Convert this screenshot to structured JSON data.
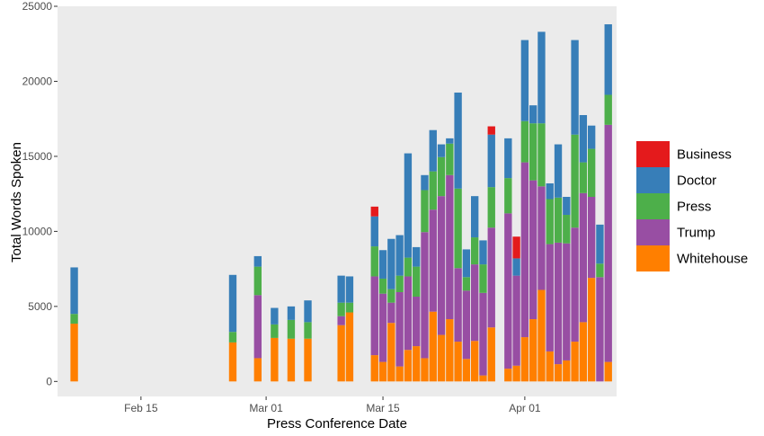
{
  "chart_data": {
    "type": "bar",
    "stacked": true,
    "xlabel": "Press Conference Date",
    "ylabel": "Total Words Spoken",
    "ylim": [
      -1000,
      25000
    ],
    "yticks": [
      0,
      5000,
      10000,
      15000,
      20000,
      25000
    ],
    "xlim": [
      "2020-02-05",
      "2020-04-12"
    ],
    "xticks": [
      {
        "date": "2020-02-15",
        "label": "Feb 15"
      },
      {
        "date": "2020-03-01",
        "label": "Mar 01"
      },
      {
        "date": "2020-03-15",
        "label": "Mar 15"
      },
      {
        "date": "2020-04-01",
        "label": "Apr 01"
      }
    ],
    "grid": false,
    "legend_position": "right",
    "stack_order": [
      "Whitehouse",
      "Trump",
      "Press",
      "Doctor",
      "Business"
    ],
    "legend": [
      "Business",
      "Doctor",
      "Press",
      "Trump",
      "Whitehouse"
    ],
    "colors": {
      "Business": "#E41A1C",
      "Doctor": "#377EB8",
      "Press": "#4DAF4A",
      "Trump": "#984EA3",
      "Whitehouse": "#FF7F00"
    },
    "bars": [
      {
        "date": "2020-02-07",
        "values": {
          "Whitehouse": 3850,
          "Trump": 0,
          "Press": 650,
          "Doctor": 3100,
          "Business": 0
        }
      },
      {
        "date": "2020-02-26",
        "values": {
          "Whitehouse": 2600,
          "Trump": 0,
          "Press": 700,
          "Doctor": 3800,
          "Business": 0
        }
      },
      {
        "date": "2020-02-29",
        "values": {
          "Whitehouse": 1550,
          "Trump": 4200,
          "Press": 1900,
          "Doctor": 700,
          "Business": 0
        }
      },
      {
        "date": "2020-03-02",
        "values": {
          "Whitehouse": 2900,
          "Trump": 0,
          "Press": 900,
          "Doctor": 1100,
          "Business": 0
        }
      },
      {
        "date": "2020-03-04",
        "values": {
          "Whitehouse": 2850,
          "Trump": 0,
          "Press": 1250,
          "Doctor": 900,
          "Business": 0
        }
      },
      {
        "date": "2020-03-06",
        "values": {
          "Whitehouse": 2850,
          "Trump": 0,
          "Press": 1100,
          "Doctor": 1450,
          "Business": 0
        }
      },
      {
        "date": "2020-03-10",
        "values": {
          "Whitehouse": 3750,
          "Trump": 600,
          "Press": 900,
          "Doctor": 1800,
          "Business": 0
        }
      },
      {
        "date": "2020-03-11",
        "values": {
          "Whitehouse": 4600,
          "Trump": 0,
          "Press": 650,
          "Doctor": 1750,
          "Business": 0
        }
      },
      {
        "date": "2020-03-14",
        "values": {
          "Whitehouse": 1750,
          "Trump": 5250,
          "Press": 2000,
          "Doctor": 2000,
          "Business": 650
        }
      },
      {
        "date": "2020-03-15",
        "values": {
          "Whitehouse": 1300,
          "Trump": 4550,
          "Press": 1000,
          "Doctor": 1900,
          "Business": 0
        }
      },
      {
        "date": "2020-03-16",
        "values": {
          "Whitehouse": 3900,
          "Trump": 1350,
          "Press": 900,
          "Doctor": 3350,
          "Business": 0
        }
      },
      {
        "date": "2020-03-17",
        "values": {
          "Whitehouse": 1000,
          "Trump": 4950,
          "Press": 1100,
          "Doctor": 2700,
          "Business": 0
        }
      },
      {
        "date": "2020-03-18",
        "values": {
          "Whitehouse": 2100,
          "Trump": 4900,
          "Press": 1250,
          "Doctor": 6950,
          "Business": 0
        }
      },
      {
        "date": "2020-03-19",
        "values": {
          "Whitehouse": 2350,
          "Trump": 3300,
          "Press": 2000,
          "Doctor": 1300,
          "Business": 0
        }
      },
      {
        "date": "2020-03-20",
        "values": {
          "Whitehouse": 1550,
          "Trump": 8400,
          "Press": 2800,
          "Doctor": 1000,
          "Business": 0
        }
      },
      {
        "date": "2020-03-21",
        "values": {
          "Whitehouse": 4650,
          "Trump": 6800,
          "Press": 2550,
          "Doctor": 2750,
          "Business": 0
        }
      },
      {
        "date": "2020-03-22",
        "values": {
          "Whitehouse": 3100,
          "Trump": 9250,
          "Press": 2600,
          "Doctor": 850,
          "Business": 0
        }
      },
      {
        "date": "2020-03-23",
        "values": {
          "Whitehouse": 4150,
          "Trump": 9600,
          "Press": 2100,
          "Doctor": 350,
          "Business": 0
        }
      },
      {
        "date": "2020-03-24",
        "values": {
          "Whitehouse": 2650,
          "Trump": 4900,
          "Press": 5300,
          "Doctor": 6400,
          "Business": 0
        }
      },
      {
        "date": "2020-03-25",
        "values": {
          "Whitehouse": 1500,
          "Trump": 4550,
          "Press": 900,
          "Doctor": 1850,
          "Business": 0
        }
      },
      {
        "date": "2020-03-26",
        "values": {
          "Whitehouse": 2700,
          "Trump": 5100,
          "Press": 1800,
          "Doctor": 2750,
          "Business": 0
        }
      },
      {
        "date": "2020-03-27",
        "values": {
          "Whitehouse": 400,
          "Trump": 5500,
          "Press": 1900,
          "Doctor": 1600,
          "Business": 0
        }
      },
      {
        "date": "2020-03-28",
        "values": {
          "Whitehouse": 3600,
          "Trump": 6650,
          "Press": 2700,
          "Doctor": 3500,
          "Business": 550
        }
      },
      {
        "date": "2020-03-30",
        "values": {
          "Whitehouse": 850,
          "Trump": 10350,
          "Press": 2350,
          "Doctor": 2650,
          "Business": 0
        }
      },
      {
        "date": "2020-03-31",
        "values": {
          "Whitehouse": 1050,
          "Trump": 6000,
          "Press": 0,
          "Doctor": 1150,
          "Business": 1450
        }
      },
      {
        "date": "2020-04-01",
        "values": {
          "Whitehouse": 2950,
          "Trump": 11650,
          "Press": 2750,
          "Doctor": 5400,
          "Business": 0
        }
      },
      {
        "date": "2020-04-02",
        "values": {
          "Whitehouse": 4150,
          "Trump": 9250,
          "Press": 3800,
          "Doctor": 1200,
          "Business": 0
        }
      },
      {
        "date": "2020-04-03",
        "values": {
          "Whitehouse": 6100,
          "Trump": 6900,
          "Press": 4200,
          "Doctor": 6100,
          "Business": 0
        }
      },
      {
        "date": "2020-04-04",
        "values": {
          "Whitehouse": 2000,
          "Trump": 7150,
          "Press": 3000,
          "Doctor": 1050,
          "Business": 0
        }
      },
      {
        "date": "2020-04-05",
        "values": {
          "Whitehouse": 1150,
          "Trump": 8100,
          "Press": 3000,
          "Doctor": 3550,
          "Business": 0
        }
      },
      {
        "date": "2020-04-06",
        "values": {
          "Whitehouse": 1400,
          "Trump": 7800,
          "Press": 1900,
          "Doctor": 1200,
          "Business": 0
        }
      },
      {
        "date": "2020-04-07",
        "values": {
          "Whitehouse": 2650,
          "Trump": 7600,
          "Press": 6200,
          "Doctor": 6300,
          "Business": 0
        }
      },
      {
        "date": "2020-04-08",
        "values": {
          "Whitehouse": 3950,
          "Trump": 8600,
          "Press": 2050,
          "Doctor": 3150,
          "Business": 0
        }
      },
      {
        "date": "2020-04-09",
        "values": {
          "Whitehouse": 6900,
          "Trump": 5400,
          "Press": 3200,
          "Doctor": 1550,
          "Business": 0
        }
      },
      {
        "date": "2020-04-10",
        "values": {
          "Whitehouse": 0,
          "Trump": 6950,
          "Press": 900,
          "Doctor": 2600,
          "Business": 0
        }
      },
      {
        "date": "2020-04-11",
        "values": {
          "Whitehouse": 1300,
          "Trump": 15800,
          "Press": 2000,
          "Doctor": 4700,
          "Business": 0
        }
      }
    ]
  }
}
